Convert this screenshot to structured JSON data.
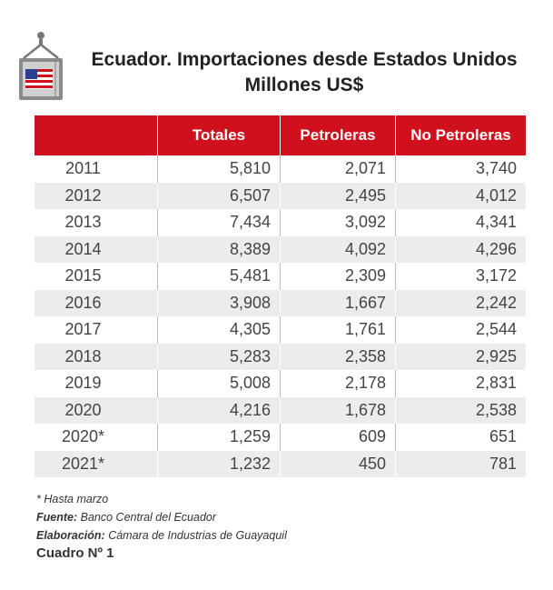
{
  "title": {
    "line1": "Ecuador. Importaciones desde Estados Unidos",
    "line2": "Millones US$"
  },
  "logo": {
    "icon": "shipping-container-us-flag-icon",
    "colors": {
      "red": "#d0101c",
      "blue": "#2b3f8f"
    }
  },
  "table": {
    "headers": [
      "",
      "Totales",
      "Petroleras",
      "No Petroleras"
    ],
    "rows": [
      [
        "2011",
        "5,810",
        "2,071",
        "3,740"
      ],
      [
        "2012",
        "6,507",
        "2,495",
        "4,012"
      ],
      [
        "2013",
        "7,434",
        "3,092",
        "4,341"
      ],
      [
        "2014",
        "8,389",
        "4,092",
        "4,296"
      ],
      [
        "2015",
        "5,481",
        "2,309",
        "3,172"
      ],
      [
        "2016",
        "3,908",
        "1,667",
        "2,242"
      ],
      [
        "2017",
        "4,305",
        "1,761",
        "2,544"
      ],
      [
        "2018",
        "5,283",
        "2,358",
        "2,925"
      ],
      [
        "2019",
        "5,008",
        "2,178",
        "2,831"
      ],
      [
        "2020",
        "4,216",
        "1,678",
        "2,538"
      ],
      [
        "2020*",
        "1,259",
        "609",
        "651"
      ],
      [
        "2021*",
        "1,232",
        "450",
        "781"
      ]
    ],
    "header_color": "#d0101c",
    "stripe_color": "#ececec"
  },
  "notes": {
    "note": "* Hasta marzo",
    "fuente_label": "Fuente:",
    "fuente_value": "Banco Central del Ecuador",
    "elaboracion_label": "Elaboración:",
    "elaboracion_value": "Cámara de Industrias de Guayaquil"
  },
  "cuadro": "Cuadro Nº 1"
}
